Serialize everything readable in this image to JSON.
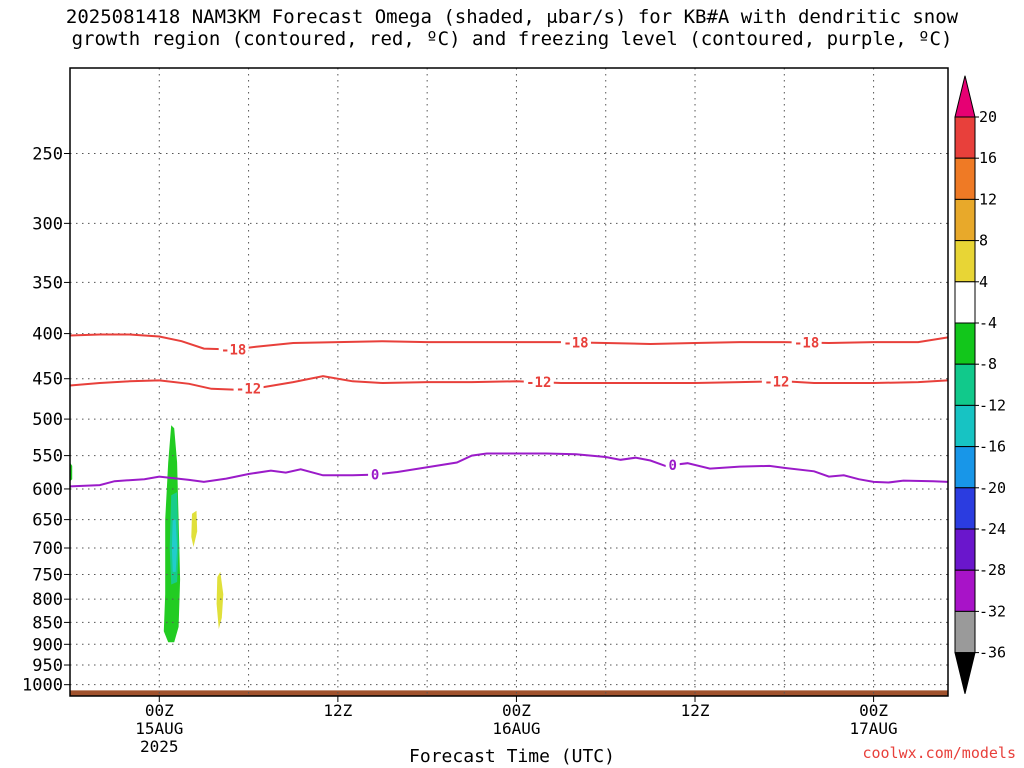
{
  "title_line1": "2025081418 NAM3KM Forecast Omega (shaded, μbar/s) for KB#A with dendritic snow",
  "title_line2": "growth region (contoured, red, ºC) and freezing level (contoured, purple, ºC)",
  "watermark": "coolwx.com/models",
  "chart_data": {
    "type": "area",
    "title": "2025081418 NAM3KM Forecast Omega (shaded, μbar/s) for KB#A with dendritic snow growth region (contoured, red, ºC) and freezing level (contoured, purple, ºC)",
    "xlabel": "Forecast Time (UTC)",
    "ylabel": "",
    "x_unit": "hours since 2025-08-14 18Z",
    "xlim": [
      0,
      59
    ],
    "ylim_hPa": [
      1030,
      200
    ],
    "y_scale": "log-pressure",
    "grid": true,
    "x_ticks": [
      {
        "hour": 6,
        "lines": [
          "00Z",
          "15AUG",
          "2025"
        ]
      },
      {
        "hour": 18,
        "lines": [
          "12Z"
        ]
      },
      {
        "hour": 30,
        "lines": [
          "00Z",
          "16AUG"
        ]
      },
      {
        "hour": 42,
        "lines": [
          "12Z"
        ]
      },
      {
        "hour": 54,
        "lines": [
          "00Z",
          "17AUG"
        ]
      }
    ],
    "y_ticks": [
      250,
      300,
      350,
      400,
      450,
      500,
      550,
      600,
      650,
      700,
      750,
      800,
      850,
      900,
      950,
      1000
    ],
    "contours": [
      {
        "name": "-18",
        "color": "#e8403b",
        "labels_at": [
          11,
          34,
          49.5
        ],
        "points": [
          [
            0,
            402
          ],
          [
            2,
            401
          ],
          [
            4,
            401
          ],
          [
            6,
            403
          ],
          [
            7.5,
            408
          ],
          [
            9,
            416
          ],
          [
            11,
            417
          ],
          [
            12.5,
            414
          ],
          [
            15,
            410
          ],
          [
            18,
            409
          ],
          [
            21,
            408
          ],
          [
            24,
            409
          ],
          [
            27,
            409
          ],
          [
            30,
            409
          ],
          [
            33,
            409
          ],
          [
            36,
            410
          ],
          [
            39,
            411
          ],
          [
            42,
            410
          ],
          [
            45,
            409
          ],
          [
            48,
            409
          ],
          [
            51,
            410
          ],
          [
            54,
            409
          ],
          [
            57,
            409
          ],
          [
            59,
            404
          ]
        ]
      },
      {
        "name": "-12",
        "color": "#e8403b",
        "labels_at": [
          12,
          31.5,
          47.5
        ],
        "points": [
          [
            0,
            458
          ],
          [
            2,
            455
          ],
          [
            4,
            453
          ],
          [
            6,
            452
          ],
          [
            8,
            456
          ],
          [
            9.5,
            462
          ],
          [
            11,
            463
          ],
          [
            13,
            460
          ],
          [
            15,
            454
          ],
          [
            17,
            447
          ],
          [
            19,
            453
          ],
          [
            21,
            455
          ],
          [
            24,
            454
          ],
          [
            27,
            454
          ],
          [
            30,
            453
          ],
          [
            33,
            455
          ],
          [
            36,
            455
          ],
          [
            39,
            455
          ],
          [
            42,
            455
          ],
          [
            45,
            454
          ],
          [
            48,
            453
          ],
          [
            50,
            455
          ],
          [
            54,
            455
          ],
          [
            57,
            454
          ],
          [
            59,
            452
          ]
        ]
      },
      {
        "name": "0",
        "color": "#9b1bc9",
        "labels_at": [
          20.5,
          40.5
        ],
        "points": [
          [
            0,
            596
          ],
          [
            2,
            594
          ],
          [
            3,
            588
          ],
          [
            5,
            585
          ],
          [
            6,
            581
          ],
          [
            8,
            586
          ],
          [
            9,
            589
          ],
          [
            10.5,
            584
          ],
          [
            12,
            577
          ],
          [
            13.5,
            572
          ],
          [
            14.5,
            575
          ],
          [
            15.5,
            570
          ],
          [
            17,
            579
          ],
          [
            19,
            579
          ],
          [
            20.5,
            578
          ],
          [
            22,
            574
          ],
          [
            24,
            567
          ],
          [
            26,
            560
          ],
          [
            27,
            550
          ],
          [
            28,
            547
          ],
          [
            30,
            547
          ],
          [
            32,
            547
          ],
          [
            34,
            548
          ],
          [
            36,
            552
          ],
          [
            37,
            556
          ],
          [
            38,
            553
          ],
          [
            39,
            557
          ],
          [
            40,
            565
          ],
          [
            41.5,
            561
          ],
          [
            43,
            569
          ],
          [
            45,
            566
          ],
          [
            47,
            565
          ],
          [
            48,
            568
          ],
          [
            50,
            573
          ],
          [
            51,
            581
          ],
          [
            52,
            579
          ],
          [
            53,
            585
          ],
          [
            54,
            589
          ],
          [
            55,
            590
          ],
          [
            56,
            587
          ],
          [
            58,
            588
          ],
          [
            59,
            589
          ]
        ]
      }
    ],
    "omega_regions": [
      {
        "name": "omega -4 to -8 (green)",
        "color": "#22cc22",
        "points": [
          [
            6.3,
            870
          ],
          [
            6.4,
            790
          ],
          [
            6.4,
            650
          ],
          [
            6.6,
            560
          ],
          [
            6.8,
            508
          ],
          [
            7.0,
            512
          ],
          [
            7.2,
            560
          ],
          [
            7.3,
            650
          ],
          [
            7.4,
            760
          ],
          [
            7.3,
            860
          ],
          [
            7.0,
            895
          ],
          [
            6.6,
            895
          ]
        ]
      },
      {
        "name": "omega -8 to -12 (teal)",
        "color": "#18cc8a",
        "points": [
          [
            6.8,
            610
          ],
          [
            7.2,
            605
          ],
          [
            7.3,
            700
          ],
          [
            7.2,
            765
          ],
          [
            6.8,
            770
          ],
          [
            6.7,
            700
          ]
        ]
      },
      {
        "name": "omega -12 to -16 (cyan)",
        "color": "#22cccc",
        "points": [
          [
            6.9,
            650
          ],
          [
            7.1,
            650
          ],
          [
            7.2,
            700
          ],
          [
            7.1,
            745
          ],
          [
            6.9,
            745
          ],
          [
            6.85,
            700
          ]
        ]
      },
      {
        "name": "omega 4 to 8 (yellow)",
        "color": "#e0e03a",
        "points": [
          [
            8.2,
            640
          ],
          [
            8.5,
            635
          ],
          [
            8.55,
            670
          ],
          [
            8.3,
            698
          ],
          [
            8.15,
            680
          ]
        ]
      },
      {
        "name": "omega 4 to 8 (yellow)",
        "color": "#e0e03a",
        "points": [
          [
            9.9,
            755
          ],
          [
            10.1,
            745
          ],
          [
            10.3,
            790
          ],
          [
            10.2,
            840
          ],
          [
            10.0,
            865
          ],
          [
            9.85,
            810
          ]
        ]
      },
      {
        "name": "omega -4 to -8 (green)",
        "color": "#22cc22",
        "points": [
          [
            0,
            560
          ],
          [
            0.15,
            565
          ],
          [
            0.15,
            585
          ],
          [
            0,
            588
          ]
        ]
      }
    ],
    "terrain": {
      "color": "#a0522d",
      "top_hPa": 1015
    },
    "colorbar": {
      "unit": "μbar/s",
      "labels": [
        "20",
        "16",
        "12",
        "8",
        "4",
        "-4",
        "-8",
        "-12",
        "-16",
        "-20",
        "-24",
        "-28",
        "-32",
        "-36"
      ],
      "bins": [
        {
          "color": "#e60073"
        },
        {
          "color": "#e8403b"
        },
        {
          "color": "#ef7a25"
        },
        {
          "color": "#e8a92a"
        },
        {
          "color": "#e8d535"
        },
        {
          "color": "#ffffff"
        },
        {
          "color": "#12c61b"
        },
        {
          "color": "#11c98b"
        },
        {
          "color": "#17c3c3"
        },
        {
          "color": "#1896e8"
        },
        {
          "color": "#2b3ce0"
        },
        {
          "color": "#6a16cc"
        },
        {
          "color": "#a813c8"
        },
        {
          "color": "#9a9a9a"
        },
        {
          "color": "#000000"
        }
      ]
    }
  }
}
